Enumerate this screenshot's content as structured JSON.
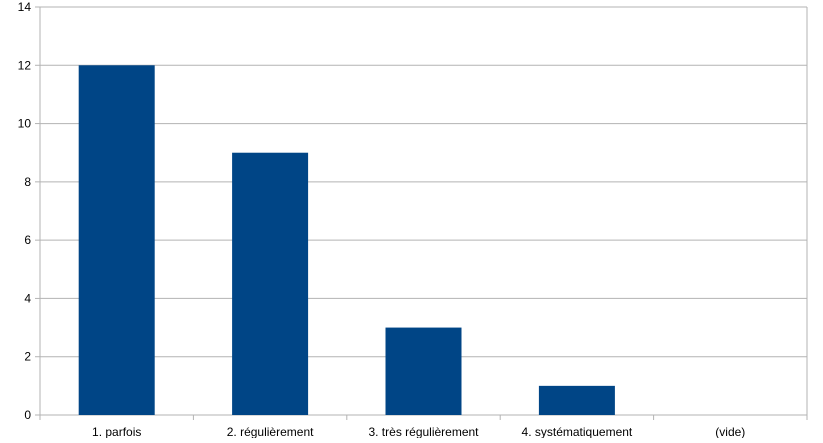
{
  "chart_data": {
    "type": "bar",
    "categories": [
      "1. parfois",
      "2. régulièrement",
      "3. très régulièrement",
      "4. systématiquement",
      "(vide)"
    ],
    "values": [
      12,
      9,
      3,
      1,
      0
    ],
    "ylim": [
      0,
      14
    ],
    "yticks": [
      0,
      2,
      4,
      6,
      8,
      10,
      12,
      14
    ],
    "grid": true,
    "legend": "none",
    "colors": {
      "bar": "#004586",
      "grid": "#b3b3b3",
      "axis": "#b3b3b3"
    }
  }
}
